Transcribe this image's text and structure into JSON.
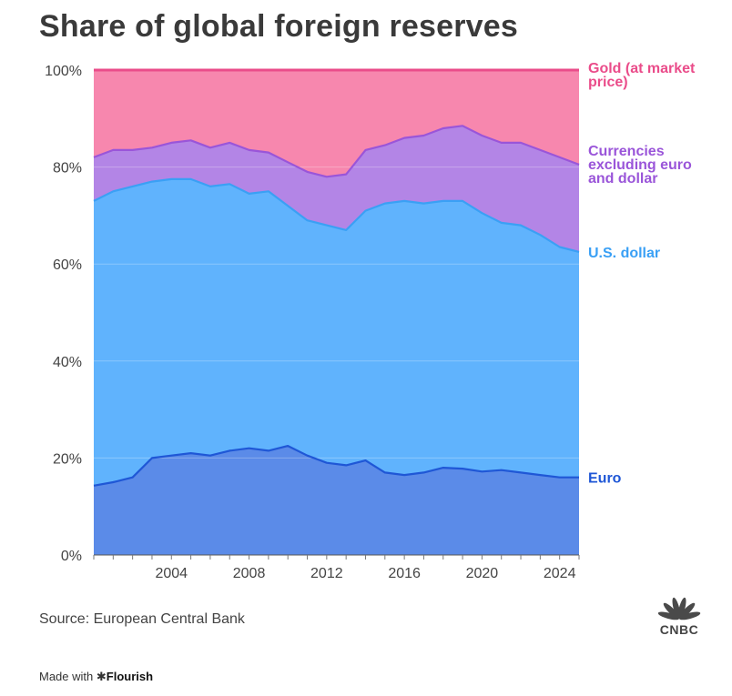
{
  "title": "Share of global foreign reserves",
  "source": "Source: European Central Bank",
  "footer": {
    "made_with": "Made with",
    "brand": "Flourish"
  },
  "logo": {
    "text": "CNBC",
    "icon": "cnbc-peacock-icon"
  },
  "colors": {
    "euro_fill": "#5b8be8",
    "euro_line": "#1f57d6",
    "usd_fill": "#60b3fd",
    "usd_line": "#3aa0f5",
    "other_fill": "#b385e6",
    "other_line": "#9a55d9",
    "gold_fill": "#f787ae",
    "gold_line": "#ea4c8a"
  },
  "chart_data": {
    "type": "area",
    "stacked": true,
    "title": "Share of global foreign reserves",
    "x": [
      2000,
      2001,
      2002,
      2003,
      2004,
      2005,
      2006,
      2007,
      2008,
      2009,
      2010,
      2011,
      2012,
      2013,
      2014,
      2015,
      2016,
      2017,
      2018,
      2019,
      2020,
      2021,
      2022,
      2023,
      2024,
      2025
    ],
    "xlim": [
      2000,
      2025
    ],
    "x_ticks": [
      2004,
      2008,
      2012,
      2016,
      2020,
      2024
    ],
    "x_tick_labels": [
      "2004",
      "2008",
      "2012",
      "2016",
      "2020",
      "2024"
    ],
    "ylim": [
      0,
      100
    ],
    "y_ticks": [
      0,
      20,
      40,
      60,
      80,
      100
    ],
    "y_tick_labels": [
      "0%",
      "20%",
      "40%",
      "60%",
      "80%",
      "100%"
    ],
    "grid": "horizontal",
    "series": [
      {
        "name": "Euro",
        "label": "Euro",
        "cumulative": [
          14.3,
          15.0,
          16.0,
          20.0,
          20.5,
          21.0,
          20.5,
          21.5,
          22.0,
          21.5,
          22.5,
          20.5,
          19.0,
          18.5,
          19.5,
          17.0,
          16.5,
          17.0,
          18.0,
          17.8,
          17.2,
          17.5,
          17.0,
          16.5,
          16.0,
          16.0
        ]
      },
      {
        "name": "U.S. dollar",
        "label": "U.S. dollar",
        "cumulative": [
          73.0,
          75.0,
          76.0,
          77.0,
          77.5,
          77.5,
          76.0,
          76.5,
          74.5,
          75.0,
          72.0,
          69.0,
          68.0,
          67.0,
          71.0,
          72.5,
          73.0,
          72.5,
          73.0,
          73.0,
          70.5,
          68.5,
          68.0,
          66.0,
          63.5,
          62.5
        ]
      },
      {
        "name": "Currencies excluding euro and dollar",
        "label_lines": [
          "Currencies",
          "excluding euro",
          "and dollar"
        ],
        "cumulative": [
          82.0,
          83.5,
          83.5,
          84.0,
          85.0,
          85.5,
          84.0,
          85.0,
          83.5,
          83.0,
          81.0,
          79.0,
          78.0,
          78.5,
          83.5,
          84.5,
          86.0,
          86.5,
          88.0,
          88.5,
          86.5,
          85.0,
          85.0,
          83.5,
          82.0,
          80.5
        ]
      },
      {
        "name": "Gold (at market price)",
        "label_lines": [
          "Gold (at market",
          "price)"
        ],
        "cumulative": [
          100,
          100,
          100,
          100,
          100,
          100,
          100,
          100,
          100,
          100,
          100,
          100,
          100,
          100,
          100,
          100,
          100,
          100,
          100,
          100,
          100,
          100,
          100,
          100,
          100,
          100
        ]
      }
    ]
  }
}
